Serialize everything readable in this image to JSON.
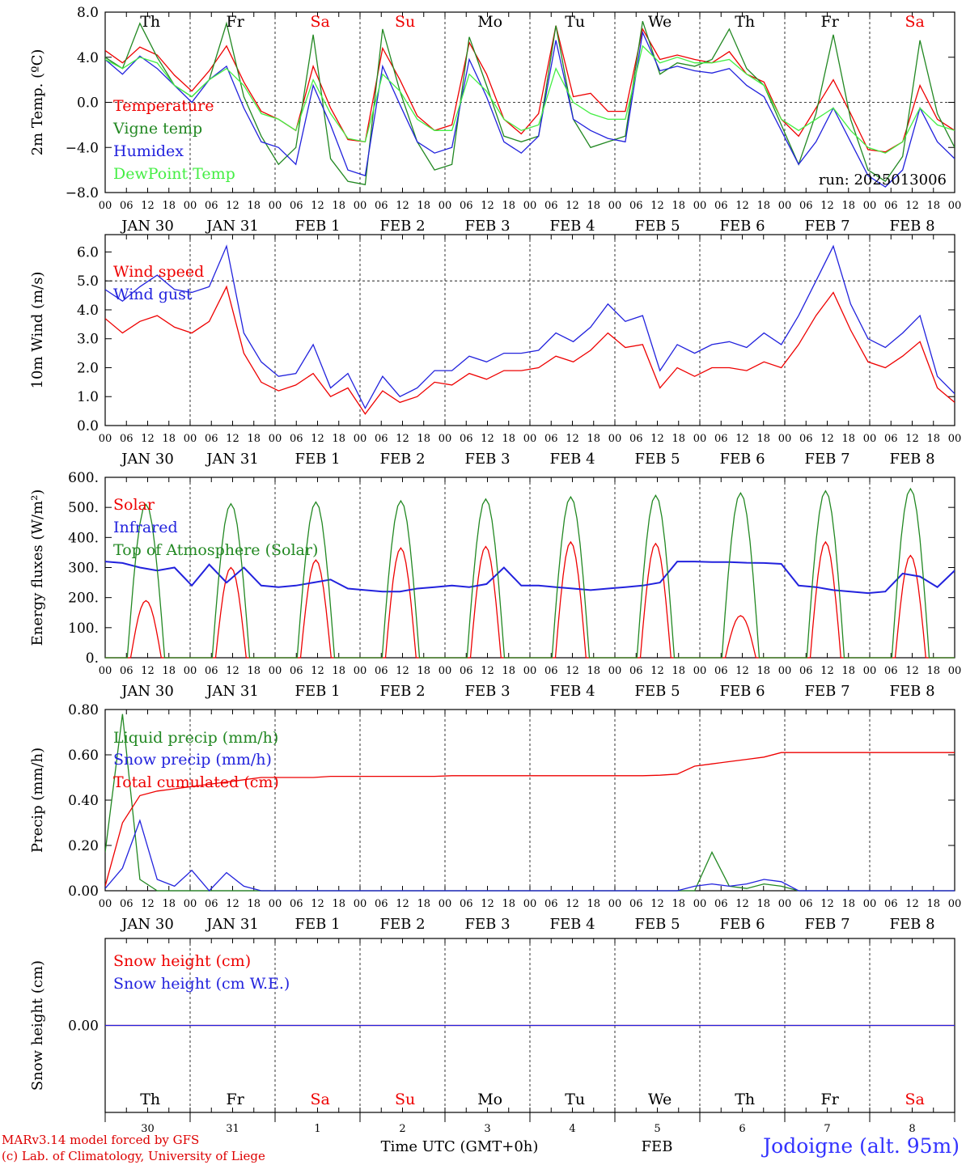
{
  "footer": {
    "credit_line1": "MARv3.14 model forced by GFS",
    "credit_line2": "(c) Lab. of Climatology, University of Liege",
    "xaxis_title": "Time UTC (GMT+0h)",
    "month_label": "FEB",
    "station": "Jodoigne (alt. 95m)"
  },
  "hour_ticks": [
    "00",
    "06",
    "12",
    "18"
  ],
  "end_tick": "00",
  "day_dates": [
    "JAN 30",
    "JAN 31",
    "FEB  1",
    "FEB  2",
    "FEB  3",
    "FEB  4",
    "FEB  5",
    "FEB  6",
    "FEB  7",
    "FEB  8"
  ],
  "weekdays": [
    {
      "label": "Th",
      "color": "#000000"
    },
    {
      "label": "Fr",
      "color": "#000000"
    },
    {
      "label": "Sa",
      "color": "#ee0000"
    },
    {
      "label": "Su",
      "color": "#ee0000"
    },
    {
      "label": "Mo",
      "color": "#000000"
    },
    {
      "label": "Tu",
      "color": "#000000"
    },
    {
      "label": "We",
      "color": "#000000"
    },
    {
      "label": "Th",
      "color": "#000000"
    },
    {
      "label": "Fr",
      "color": "#000000"
    },
    {
      "label": "Sa",
      "color": "#ee0000"
    }
  ],
  "bottom_day_numbers": [
    "30",
    "31",
    "1",
    "2",
    "3",
    "4",
    "5",
    "6",
    "7",
    "8"
  ],
  "chart_data": [
    {
      "type": "line",
      "ylabel": "2m Temp. (ºC)",
      "ylim": [
        -8,
        8
      ],
      "yticks": [
        "8.0",
        "4.0",
        "0.0",
        "−4.0",
        "−8.0"
      ],
      "yticks_values": [
        8,
        4,
        0,
        -4,
        -8
      ],
      "ref_lines": [
        0
      ],
      "annotation": "run: 2025013006",
      "x": "hours since Jan 30 00 UTC, step 6",
      "series": [
        {
          "name": "Temperature",
          "color": "#ee0000",
          "values": [
            4.6,
            3.5,
            4.9,
            4.2,
            2.4,
            1.0,
            2.8,
            5.0,
            1.8,
            -0.8,
            -1.5,
            -2.5,
            3.2,
            -0.5,
            -3.3,
            -3.5,
            4.8,
            2.0,
            -1.2,
            -2.5,
            -2.0,
            5.3,
            2.5,
            -1.5,
            -2.8,
            -1.0,
            6.8,
            0.5,
            0.8,
            -0.8,
            -0.8,
            6.5,
            3.8,
            4.2,
            3.8,
            3.5,
            4.5,
            2.5,
            1.8,
            -1.5,
            -3.0,
            -0.5,
            2.0,
            -1.0,
            -4.2,
            -4.4,
            -3.5,
            1.5,
            -1.5,
            -2.5
          ]
        },
        {
          "name": "Vigne temp",
          "color": "#228822",
          "values": [
            4.0,
            3.0,
            7.0,
            4.0,
            1.5,
            0.5,
            2.0,
            7.0,
            0.5,
            -3.0,
            -5.5,
            -4.0,
            6.0,
            -5.0,
            -7.0,
            -7.3,
            6.5,
            1.0,
            -3.5,
            -6.0,
            -5.5,
            5.8,
            1.5,
            -3.0,
            -3.5,
            -3.0,
            6.8,
            -1.5,
            -4.0,
            -3.5,
            -3.0,
            7.2,
            2.5,
            3.5,
            3.2,
            3.8,
            6.5,
            3.0,
            1.5,
            -2.0,
            -5.5,
            -1.0,
            6.0,
            -1.5,
            -6.0,
            -7.0,
            -4.8,
            5.5,
            -1.0,
            -4.0
          ]
        },
        {
          "name": "Humidex",
          "color": "#2222dd",
          "values": [
            3.8,
            2.5,
            4.1,
            3.0,
            1.5,
            0.0,
            2.0,
            3.2,
            -0.5,
            -3.5,
            -4.0,
            -5.5,
            1.5,
            -2.0,
            -6.0,
            -6.5,
            3.2,
            -0.2,
            -3.5,
            -4.5,
            -4.0,
            3.8,
            0.5,
            -3.5,
            -4.5,
            -3.0,
            5.5,
            -1.5,
            -2.5,
            -3.2,
            -3.5,
            6.2,
            2.8,
            3.2,
            2.8,
            2.6,
            3.0,
            1.5,
            0.5,
            -2.5,
            -5.5,
            -3.5,
            -0.5,
            -3.5,
            -6.5,
            -7.5,
            -6.0,
            -0.5,
            -3.5,
            -5.0
          ]
        },
        {
          "name": "DewPoint Temp",
          "color": "#44ee44",
          "values": [
            3.8,
            3.0,
            4.0,
            3.5,
            1.5,
            0.5,
            2.0,
            3.0,
            1.5,
            -1.0,
            -1.5,
            -2.5,
            2.0,
            -1.0,
            -3.2,
            -3.5,
            2.5,
            1.0,
            -1.5,
            -2.5,
            -2.5,
            2.5,
            1.0,
            -1.5,
            -2.5,
            -2.0,
            3.0,
            0.0,
            -1.0,
            -1.5,
            -1.5,
            5.0,
            3.5,
            4.0,
            3.5,
            3.5,
            3.8,
            2.5,
            1.5,
            -1.5,
            -2.5,
            -1.5,
            -0.5,
            -2.5,
            -4.0,
            -4.5,
            -3.5,
            -0.5,
            -2.0,
            -2.5
          ]
        }
      ]
    },
    {
      "type": "line",
      "ylabel": "10m Wind (m/s)",
      "ylim": [
        0,
        6.6
      ],
      "yticks": [
        "6.0",
        "5.0",
        "4.0",
        "3.0",
        "2.0",
        "1.0",
        "0.0"
      ],
      "yticks_values": [
        6,
        5,
        4,
        3,
        2,
        1,
        0
      ],
      "ref_lines": [
        5
      ],
      "series": [
        {
          "name": "Wind speed",
          "color": "#ee0000",
          "values": [
            3.7,
            3.2,
            3.6,
            3.8,
            3.4,
            3.2,
            3.6,
            4.8,
            2.5,
            1.5,
            1.2,
            1.4,
            1.8,
            1.0,
            1.3,
            0.4,
            1.2,
            0.8,
            1.0,
            1.5,
            1.4,
            1.8,
            1.6,
            1.9,
            1.9,
            2.0,
            2.4,
            2.2,
            2.6,
            3.2,
            2.7,
            2.8,
            1.3,
            2.0,
            1.7,
            2.0,
            2.0,
            1.9,
            2.2,
            2.0,
            2.8,
            3.8,
            4.6,
            3.3,
            2.2,
            2.0,
            2.4,
            2.9,
            1.3,
            0.8
          ]
        },
        {
          "name": "Wind gust",
          "color": "#2222dd",
          "values": [
            4.7,
            4.3,
            4.8,
            5.2,
            4.7,
            4.6,
            4.8,
            6.2,
            3.2,
            2.2,
            1.7,
            1.8,
            2.8,
            1.3,
            1.8,
            0.6,
            1.7,
            1.0,
            1.3,
            1.9,
            1.9,
            2.4,
            2.2,
            2.5,
            2.5,
            2.6,
            3.2,
            2.9,
            3.4,
            4.2,
            3.6,
            3.8,
            1.9,
            2.8,
            2.5,
            2.8,
            2.9,
            2.7,
            3.2,
            2.8,
            3.8,
            5.0,
            6.2,
            4.2,
            3.0,
            2.7,
            3.2,
            3.8,
            1.7,
            1.1
          ]
        }
      ]
    },
    {
      "type": "line",
      "ylabel": "Energy fluxes (W/m²)",
      "ylim": [
        0,
        600
      ],
      "yticks": [
        "600.",
        "500.",
        "400.",
        "300.",
        "200.",
        "100.",
        "0."
      ],
      "yticks_values": [
        600,
        500,
        400,
        300,
        200,
        100,
        0
      ],
      "series": [
        {
          "name": "Solar",
          "color": "#ee0000",
          "peaks": [
            190,
            300,
            325,
            365,
            370,
            385,
            380,
            140,
            385,
            340
          ]
        },
        {
          "name": "Infrared",
          "color": "#2222dd",
          "values": [
            320,
            315,
            300,
            290,
            300,
            240,
            310,
            250,
            300,
            240,
            235,
            240,
            250,
            260,
            230,
            225,
            220,
            220,
            230,
            235,
            240,
            235,
            245,
            300,
            240,
            240,
            235,
            230,
            225,
            230,
            235,
            240,
            250,
            320,
            320,
            318,
            318,
            316,
            315,
            312,
            240,
            235,
            225,
            220,
            215,
            220,
            280,
            270,
            235,
            290
          ]
        },
        {
          "name": "Top of Atmosphere (Solar)",
          "color": "#228822",
          "peaks": [
            510,
            512,
            518,
            522,
            528,
            535,
            540,
            548,
            555,
            562
          ]
        }
      ]
    },
    {
      "type": "line",
      "ylabel": "Precip (mm/h)",
      "ylim": [
        0,
        0.8
      ],
      "yticks": [
        "0.80",
        "0.60",
        "0.40",
        "0.20",
        "0.00"
      ],
      "yticks_values": [
        0.8,
        0.6,
        0.4,
        0.2,
        0
      ],
      "series": [
        {
          "name": "Liquid precip (mm/h)",
          "color": "#228822",
          "values": [
            0.17,
            0.78,
            0.05,
            0.0,
            0.0,
            0.0,
            0.0,
            0.0,
            0.0,
            0.0,
            0.0,
            0.0,
            0.0,
            0.0,
            0.0,
            0.0,
            0.0,
            0.0,
            0.0,
            0.0,
            0.0,
            0.0,
            0.0,
            0.0,
            0.0,
            0.0,
            0.0,
            0.0,
            0.0,
            0.0,
            0.0,
            0.0,
            0.0,
            0.0,
            0.0,
            0.17,
            0.02,
            0.01,
            0.03,
            0.02,
            0.0,
            0.0,
            0.0,
            0.0,
            0.0,
            0.0,
            0.0,
            0.0,
            0.0,
            0.0
          ]
        },
        {
          "name": "Snow precip (mm/h)",
          "color": "#2222dd",
          "values": [
            0.01,
            0.1,
            0.31,
            0.05,
            0.02,
            0.09,
            0.0,
            0.08,
            0.02,
            0.0,
            0.0,
            0.0,
            0.0,
            0.0,
            0.0,
            0.0,
            0.0,
            0.0,
            0.0,
            0.0,
            0.0,
            0.0,
            0.0,
            0.0,
            0.0,
            0.0,
            0.0,
            0.0,
            0.0,
            0.0,
            0.0,
            0.0,
            0.0,
            0.0,
            0.02,
            0.03,
            0.02,
            0.03,
            0.05,
            0.04,
            0.0,
            0.0,
            0.0,
            0.0,
            0.0,
            0.0,
            0.0,
            0.0,
            0.0,
            0.0
          ]
        },
        {
          "name": "Total cumulated (cm)",
          "color": "#ee0000",
          "values": [
            0.02,
            0.3,
            0.42,
            0.44,
            0.45,
            0.46,
            0.47,
            0.48,
            0.49,
            0.5,
            0.5,
            0.5,
            0.5,
            0.505,
            0.505,
            0.505,
            0.505,
            0.505,
            0.505,
            0.505,
            0.508,
            0.508,
            0.508,
            0.508,
            0.508,
            0.508,
            0.508,
            0.508,
            0.508,
            0.508,
            0.508,
            0.508,
            0.51,
            0.515,
            0.55,
            0.56,
            0.57,
            0.58,
            0.59,
            0.61,
            0.61,
            0.61,
            0.61,
            0.61,
            0.61,
            0.61,
            0.61,
            0.61,
            0.61,
            0.61
          ]
        }
      ]
    },
    {
      "type": "line",
      "ylabel": "Snow height (cm)",
      "ylim": [
        -1,
        1
      ],
      "yticks": [
        "0.00"
      ],
      "yticks_values": [
        0
      ],
      "series": [
        {
          "name": "Snow height (cm)",
          "color": "#ee0000",
          "values": [
            0,
            0
          ]
        },
        {
          "name": "Snow height (cm W.E.)",
          "color": "#2222dd",
          "values": [
            0,
            0
          ]
        }
      ]
    }
  ]
}
